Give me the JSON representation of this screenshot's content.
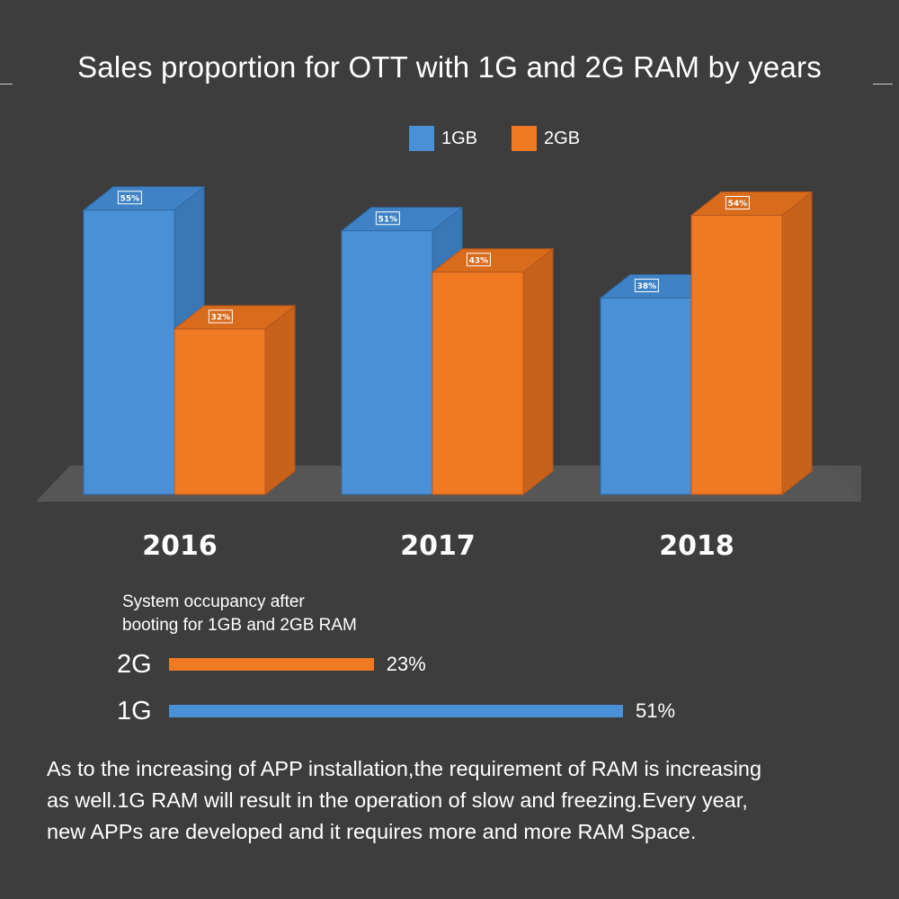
{
  "title": "Sales proportion for OTT with 1G and 2G RAM by years",
  "colors": {
    "background": "#3d3d3d",
    "series_1gb": "#4a90d6",
    "series_2gb": "#f07a24"
  },
  "chart_data": {
    "type": "bar",
    "title": "Sales proportion for OTT with 1G and 2G RAM by years",
    "categories": [
      "2016",
      "2017",
      "2018"
    ],
    "series": [
      {
        "name": "1GB",
        "values": [
          55,
          51,
          38
        ],
        "labels": [
          "55%",
          "51%",
          "38%"
        ]
      },
      {
        "name": "2GB",
        "values": [
          32,
          43,
          54
        ],
        "labels": [
          "32%",
          "43%",
          "54%"
        ]
      }
    ],
    "legend": "top-center",
    "ylim": [
      0,
      60
    ],
    "unit": "%"
  },
  "occupancy": {
    "caption_line1": "System occupancy after",
    "caption_line2": "booting for 1GB and 2GB RAM",
    "rows": [
      {
        "label": "2G",
        "value": 23,
        "value_label": "23%",
        "color": "#f07a24"
      },
      {
        "label": "1G",
        "value": 51,
        "value_label": "51%",
        "color": "#4a90d6"
      }
    ]
  },
  "paragraph": {
    "line1": "As to the increasing of APP installation,the requirement of RAM is increasing",
    "line2": "as well.1G RAM will result in the operation of slow and freezing.Every year,",
    "line3": "new APPs are developed and it requires more and more RAM Space."
  }
}
